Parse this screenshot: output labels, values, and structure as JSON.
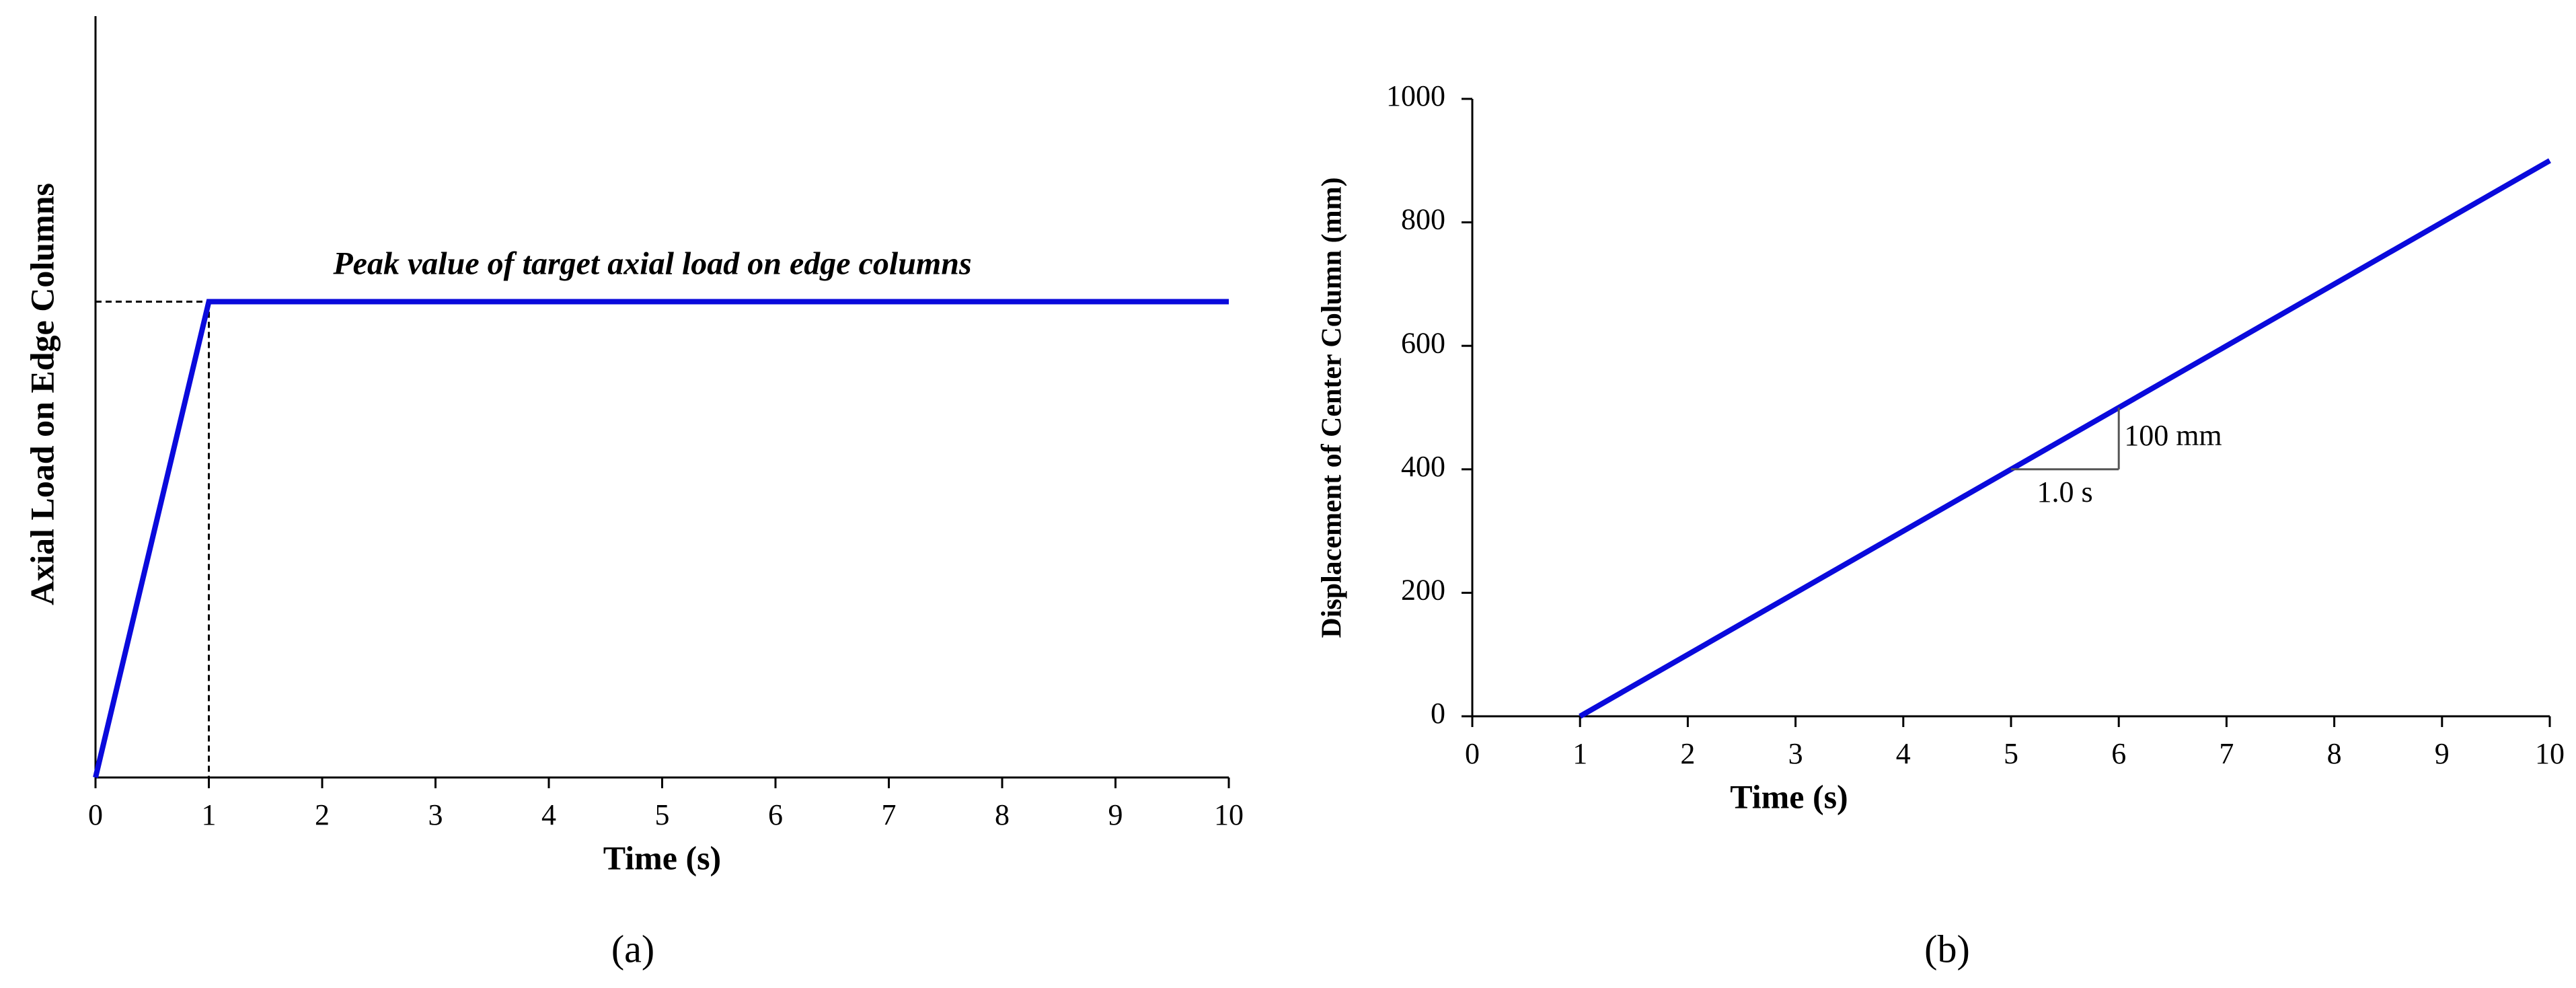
{
  "chart_data": [
    {
      "type": "line",
      "caption": "(a)",
      "x_label": "Time (s)",
      "y_label": "Axial Load on Edge Columns",
      "annotation": "Peak value of target axial load on edge columns",
      "x": [
        0,
        1,
        10
      ],
      "series": [
        {
          "color": "#0a0adc",
          "values": [
            0,
            1,
            1
          ]
        }
      ],
      "xlim": [
        0,
        10
      ],
      "xticks": [
        0,
        1,
        2,
        3,
        4,
        5,
        6,
        7,
        8,
        9,
        10
      ],
      "ylim": [
        0,
        1.6
      ]
    },
    {
      "type": "line",
      "caption": "(b)",
      "x_label": "Time (s)",
      "y_label": "Displacement of Center Column (mm)",
      "x": [
        1,
        10
      ],
      "series": [
        {
          "color": "#0a0adc",
          "values": [
            0,
            900
          ]
        }
      ],
      "xlim": [
        0,
        10
      ],
      "xticks": [
        0,
        1,
        2,
        3,
        4,
        5,
        6,
        7,
        8,
        9,
        10
      ],
      "ylim": [
        0,
        1000
      ],
      "yticks": [
        0,
        200,
        400,
        600,
        800,
        1000
      ],
      "slope": {
        "x": [
          5,
          6
        ],
        "y": [
          400,
          500
        ],
        "rise_label": "100 mm",
        "run_label": "1.0 s"
      }
    }
  ]
}
